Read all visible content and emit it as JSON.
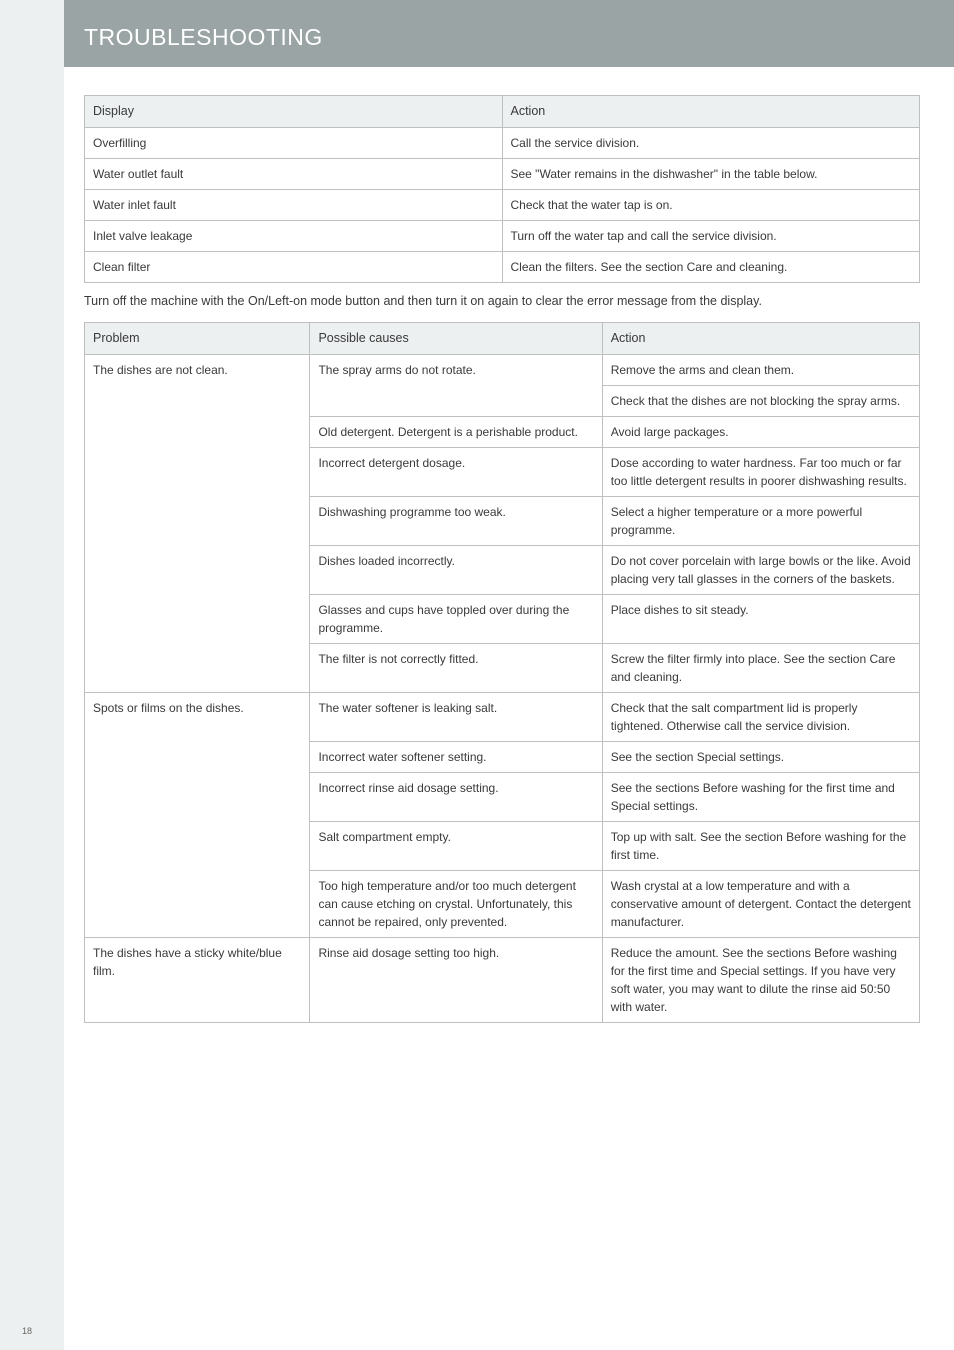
{
  "page": {
    "title": "TROUBLESHOOTING",
    "intertext": "Turn off the machine with the On/Left-on mode button and then turn it on again to clear the error message from the display.",
    "page_number": "18"
  },
  "colors": {
    "banner_bg": "#9aa4a4",
    "banner_text": "#ffffff",
    "strip_bg": "#edf0f0",
    "th_bg": "#edf0f0",
    "border": "#bfbfbf",
    "text": "#3a3a3a"
  },
  "table1": {
    "headers": [
      "Display",
      "Action"
    ],
    "rows": [
      [
        "Overfilling",
        "Call the service division."
      ],
      [
        "Water outlet fault",
        "See \"Water remains in the dishwasher\" in the table below."
      ],
      [
        "Water inlet fault",
        "Check that the water tap is on."
      ],
      [
        "Inlet valve leakage",
        "Turn off the water tap and call the service division."
      ],
      [
        "Clean filter",
        "Clean the filters. See the section Care and cleaning."
      ]
    ],
    "col_widths": [
      "50%",
      "50%"
    ]
  },
  "table2": {
    "headers": [
      "Problem",
      "Possible causes",
      "Action"
    ],
    "col_widths": [
      "27%",
      "35%",
      "38%"
    ],
    "groups": [
      {
        "problem": "The dishes are not clean.",
        "rows": [
          {
            "cause": "The spray arms do not rotate.",
            "cause_rowspan": 2,
            "action": "Remove the arms and clean them."
          },
          {
            "action": "Check that the dishes are not blocking the spray arms."
          },
          {
            "cause": "Old detergent. Detergent is a perishable product.",
            "action": "Avoid large packages."
          },
          {
            "cause": "Incorrect detergent dosage.",
            "action": "Dose according to water hardness. Far too much or far too little detergent results in poorer dishwashing results."
          },
          {
            "cause": "Dishwashing programme too weak.",
            "action": "Select a higher temperature or a more powerful programme."
          },
          {
            "cause": "Dishes loaded incorrectly.",
            "action": "Do not cover porcelain with large bowls or the like. Avoid placing very tall glasses in the corners of the baskets."
          },
          {
            "cause": "Glasses and cups have toppled over during the programme.",
            "action": "Place dishes to sit steady."
          },
          {
            "cause": "The filter is not correctly fitted.",
            "action": "Screw the filter firmly into place. See the section Care and cleaning."
          }
        ]
      },
      {
        "problem": "Spots or films on the dishes.",
        "rows": [
          {
            "cause": "The water softener is leaking salt.",
            "action": "Check that the salt compartment lid is properly tightened. Otherwise call the service division."
          },
          {
            "cause": "Incorrect water softener setting.",
            "action": "See the section Special settings."
          },
          {
            "cause": "Incorrect rinse aid dosage setting.",
            "action": "See the sections Before washing for the first time and Special settings."
          },
          {
            "cause": "Salt compartment empty.",
            "action": "Top up with salt. See the section Before washing for the first time."
          },
          {
            "cause": "Too high temperature and/or too much detergent can cause etching on crystal. Unfortunately, this cannot be repaired, only prevented.",
            "action": "Wash crystal at a low temperature and with a conservative amount of detergent. Contact the detergent manufacturer."
          }
        ]
      },
      {
        "problem": "The dishes have a sticky white/blue film.",
        "rows": [
          {
            "cause": "Rinse aid dosage setting too high.",
            "action": "Reduce the amount. See the sections Before washing for the first time and Special settings. If you have very soft water, you may want to dilute the rinse aid 50:50 with water."
          }
        ]
      }
    ]
  }
}
